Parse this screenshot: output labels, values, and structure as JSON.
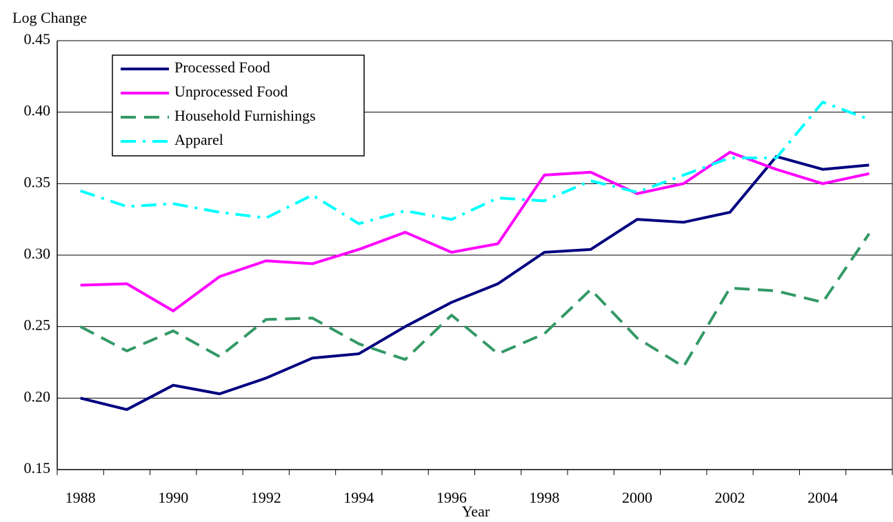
{
  "chart_data": {
    "type": "line",
    "y_label": "Log Change",
    "x_label": "Year",
    "categories": [
      1988,
      null,
      1990,
      null,
      1992,
      null,
      1994,
      null,
      1996,
      null,
      1998,
      null,
      2000,
      null,
      2002,
      null,
      2004,
      null
    ],
    "ylim": [
      0.15,
      0.45
    ],
    "yticks": [
      0.15,
      {
        "value": 0.2,
        "label": "0.20"
      },
      0.25,
      {
        "value": 0.3,
        "label": "0.30"
      },
      0.35,
      {
        "value": 0.4,
        "label": "0.40"
      },
      0.45
    ],
    "grid": true,
    "legend": "upper left",
    "series": [
      {
        "name": "Processed Food",
        "color": "#000080",
        "dash": "solid",
        "values": [
          0.2,
          0.192,
          0.209,
          0.203,
          0.214,
          0.228,
          0.231,
          0.25,
          0.267,
          0.28,
          0.302,
          0.304,
          0.325,
          0.323,
          0.33,
          0.369,
          0.36,
          0.363
        ]
      },
      {
        "name": "Unprocessed Food",
        "color": "#ff00ff",
        "dash": "solid",
        "values": [
          0.279,
          0.28,
          0.261,
          0.285,
          0.296,
          0.294,
          0.304,
          0.316,
          0.302,
          0.308,
          0.356,
          0.358,
          0.343,
          0.35,
          0.372,
          0.36,
          0.35,
          0.357
        ]
      },
      {
        "name": "Household Furnishings",
        "color": "#339966",
        "dash": "dashed",
        "values": [
          0.25,
          0.233,
          0.247,
          0.229,
          0.255,
          0.256,
          0.238,
          0.227,
          0.258,
          0.231,
          0.245,
          0.276,
          0.242,
          0.222,
          0.277,
          0.275,
          0.267,
          0.315
        ]
      },
      {
        "name": "Apparel",
        "color": "#00ffff",
        "dash": "dashdot",
        "values": [
          0.345,
          0.334,
          0.336,
          0.33,
          0.326,
          0.342,
          0.322,
          0.331,
          0.325,
          0.34,
          0.338,
          0.352,
          0.344,
          0.356,
          0.368,
          0.368,
          0.407,
          0.395
        ]
      }
    ]
  }
}
